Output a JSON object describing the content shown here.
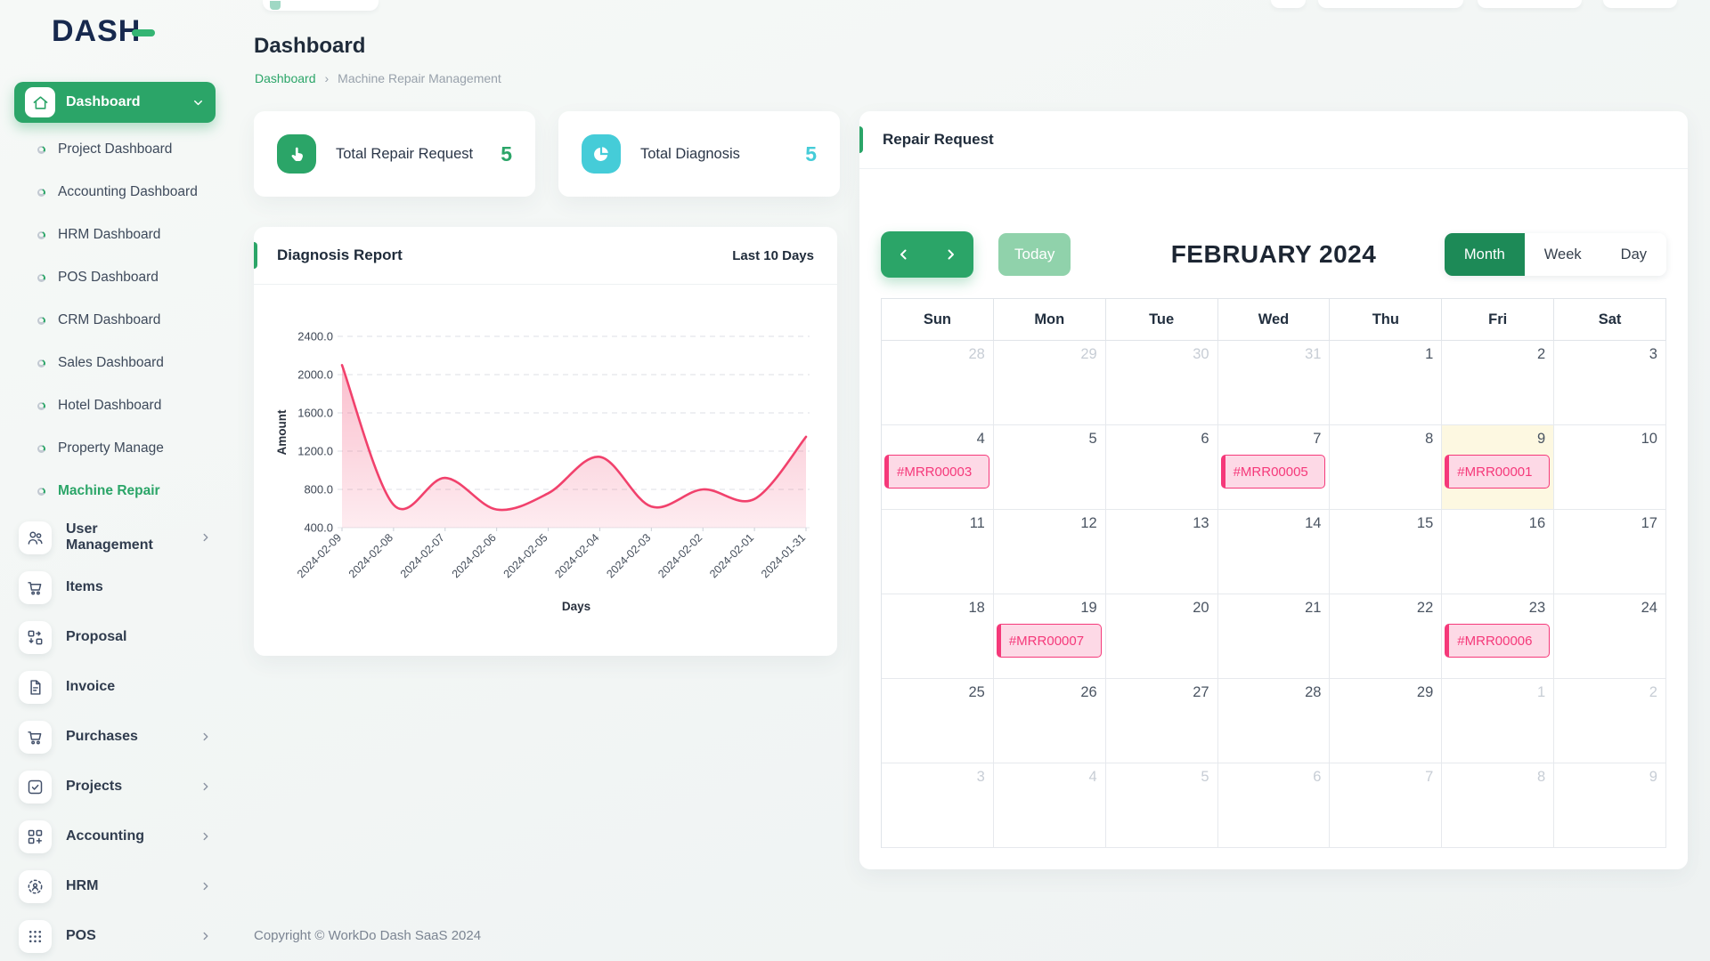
{
  "app": {
    "logo": "DASH",
    "footer": "Copyright © WorkDo Dash SaaS 2024"
  },
  "page": {
    "title": "Dashboard",
    "breadcrumb_home": "Dashboard",
    "breadcrumb_sep": "›",
    "breadcrumb_current": "Machine Repair Management"
  },
  "sidebar": {
    "items": [
      {
        "label": "Dashboard",
        "type": "parent",
        "icon": "home-icon",
        "active": true,
        "chevron": "down"
      },
      {
        "label": "Project Dashboard",
        "type": "sub"
      },
      {
        "label": "Accounting Dashboard",
        "type": "sub"
      },
      {
        "label": "HRM Dashboard",
        "type": "sub"
      },
      {
        "label": "POS Dashboard",
        "type": "sub"
      },
      {
        "label": "CRM Dashboard",
        "type": "sub"
      },
      {
        "label": "Sales Dashboard",
        "type": "sub"
      },
      {
        "label": "Hotel Dashboard",
        "type": "sub"
      },
      {
        "label": "Property Manage",
        "type": "sub"
      },
      {
        "label": "Machine Repair",
        "type": "sub",
        "active": true
      },
      {
        "label": "User Management",
        "type": "item",
        "icon": "users-icon",
        "chevron": true
      },
      {
        "label": "Items",
        "type": "item",
        "icon": "cart-icon"
      },
      {
        "label": "Proposal",
        "type": "item",
        "icon": "proposal-icon"
      },
      {
        "label": "Invoice",
        "type": "item",
        "icon": "invoice-icon"
      },
      {
        "label": "Purchases",
        "type": "item",
        "icon": "cart-icon",
        "chevron": true
      },
      {
        "label": "Projects",
        "type": "item",
        "icon": "check-square-icon",
        "chevron": true
      },
      {
        "label": "Accounting",
        "type": "item",
        "icon": "grid-plus-icon",
        "chevron": true
      },
      {
        "label": "HRM",
        "type": "item",
        "icon": "person-target-icon",
        "chevron": true
      },
      {
        "label": "POS",
        "type": "item",
        "icon": "dots-grid-icon",
        "chevron": true
      }
    ]
  },
  "stats": [
    {
      "label": "Total Repair Request",
      "value": "5",
      "icon": "hand-pointer-icon",
      "color": "#2ba568"
    },
    {
      "label": "Total Diagnosis",
      "value": "5",
      "icon": "pie-chart-icon",
      "color": "#45ccd8"
    }
  ],
  "diagnosis": {
    "title": "Diagnosis Report",
    "period": "Last 10 Days"
  },
  "chart_data": {
    "type": "area",
    "title": "Diagnosis Report",
    "x": [
      "2024-02-09",
      "2024-02-08",
      "2024-02-07",
      "2024-02-06",
      "2024-02-05",
      "2024-02-04",
      "2024-02-03",
      "2024-02-02",
      "2024-02-01",
      "2024-01-31"
    ],
    "series": [
      {
        "name": "Amount",
        "values": [
          2100,
          640,
          920,
          590,
          760,
          1140,
          620,
          800,
          700,
          1350
        ]
      }
    ],
    "xlabel": "Days",
    "ylabel": "Amount",
    "ylim": [
      400,
      2400
    ],
    "yticks": [
      "2400.0",
      "2000.0",
      "1600.0",
      "1200.0",
      "800.0",
      "400.0"
    ],
    "ytick_values": [
      2400,
      2000,
      1600,
      1200,
      800,
      400
    ],
    "grid": true,
    "legend": false,
    "line_color": "#f1416c"
  },
  "calendar": {
    "title": "Repair Request",
    "toolbar": {
      "today": "Today",
      "month_title": "FEBRUARY 2024",
      "views": [
        {
          "label": "Month",
          "active": true
        },
        {
          "label": "Week",
          "active": false
        },
        {
          "label": "Day",
          "active": false
        }
      ]
    },
    "day_headers": [
      "Sun",
      "Mon",
      "Tue",
      "Wed",
      "Thu",
      "Fri",
      "Sat"
    ],
    "weeks": [
      [
        {
          "day": "28",
          "muted": true
        },
        {
          "day": "29",
          "muted": true
        },
        {
          "day": "30",
          "muted": true
        },
        {
          "day": "31",
          "muted": true
        },
        {
          "day": "1"
        },
        {
          "day": "2"
        },
        {
          "day": "3"
        }
      ],
      [
        {
          "day": "4",
          "event": "#MRR00003"
        },
        {
          "day": "5"
        },
        {
          "day": "6"
        },
        {
          "day": "7",
          "event": "#MRR00005"
        },
        {
          "day": "8"
        },
        {
          "day": "9",
          "today": true,
          "event": "#MRR00001"
        },
        {
          "day": "10"
        }
      ],
      [
        {
          "day": "11"
        },
        {
          "day": "12"
        },
        {
          "day": "13"
        },
        {
          "day": "14"
        },
        {
          "day": "15"
        },
        {
          "day": "16"
        },
        {
          "day": "17"
        }
      ],
      [
        {
          "day": "18"
        },
        {
          "day": "19",
          "event": "#MRR00007"
        },
        {
          "day": "20"
        },
        {
          "day": "21"
        },
        {
          "day": "22"
        },
        {
          "day": "23",
          "event": "#MRR00006"
        },
        {
          "day": "24"
        }
      ],
      [
        {
          "day": "25"
        },
        {
          "day": "26"
        },
        {
          "day": "27"
        },
        {
          "day": "28"
        },
        {
          "day": "29"
        },
        {
          "day": "1",
          "muted": true
        },
        {
          "day": "2",
          "muted": true
        }
      ],
      [
        {
          "day": "3",
          "muted": true
        },
        {
          "day": "4",
          "muted": true
        },
        {
          "day": "5",
          "muted": true
        },
        {
          "day": "6",
          "muted": true
        },
        {
          "day": "7",
          "muted": true
        },
        {
          "day": "8",
          "muted": true
        },
        {
          "day": "9",
          "muted": true
        }
      ]
    ]
  },
  "colors": {
    "primary_green": "#2ba568",
    "dark_green": "#1d8a57",
    "light_green_disabled": "#90d2ab",
    "cyan": "#45ccd8",
    "chart_pink": "#f1416c",
    "event_border": "#f5397a",
    "event_bg": "#fdd9e6",
    "today_cell_bg": "#fdf8e1",
    "logo_navy": "#17294e"
  }
}
